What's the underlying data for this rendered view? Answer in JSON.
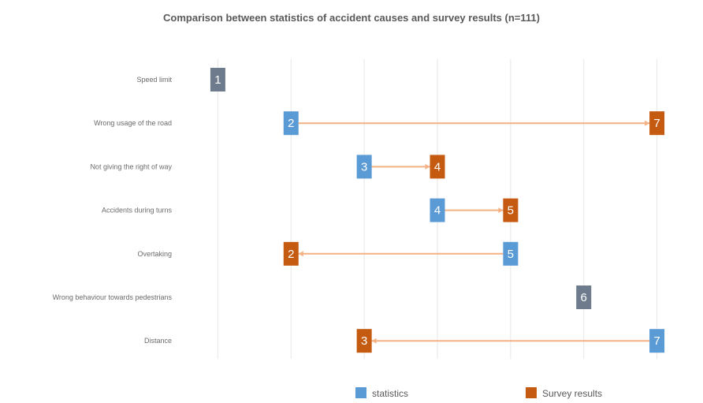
{
  "chart_data": {
    "type": "dumbbell",
    "title": "Comparison between statistics of accident causes and survey results (n=111)",
    "xlim": [
      0.5,
      7.5
    ],
    "grid": true,
    "legend_position": "bottom",
    "categories": [
      "Speed limit",
      "Wrong usage of the road",
      "Not giving the right of way",
      "Accidents during turns",
      "Overtaking",
      "Wrong behaviour towards pedestrians",
      "Distance"
    ],
    "series": [
      {
        "name": "statistics",
        "color": "#5b9bd5",
        "values": [
          1,
          2,
          3,
          4,
          5,
          6,
          7
        ]
      },
      {
        "name": "Survey results",
        "color": "#c55a11",
        "values": [
          1,
          7,
          4,
          5,
          2,
          6,
          3
        ]
      }
    ],
    "colors": {
      "same_rank": "#6d7b8d",
      "connector": "#f4b183",
      "grid": "#e6e6e6"
    }
  }
}
